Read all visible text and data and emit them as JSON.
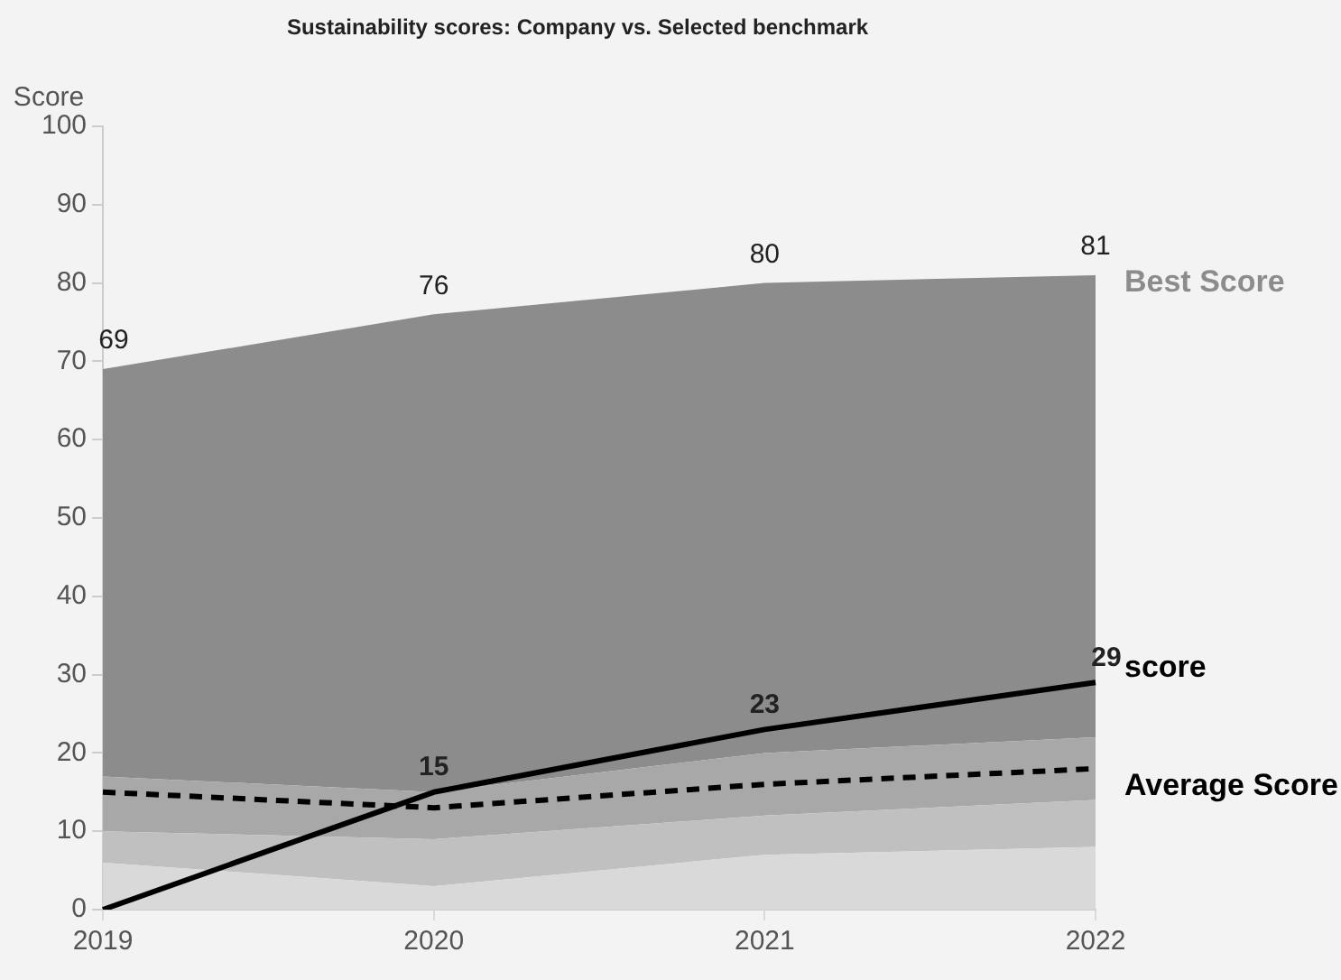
{
  "chart_data": {
    "type": "area",
    "title": "Sustainability scores: Company vs. Selected benchmark",
    "ylabel": "Score",
    "categories": [
      "2019",
      "2020",
      "2021",
      "2022"
    ],
    "stacked": true,
    "ylim": [
      0,
      100
    ],
    "yticks": [
      0,
      10,
      20,
      30,
      40,
      50,
      60,
      70,
      80,
      90,
      100
    ],
    "legend": false,
    "marker": "none",
    "totals": [
      "69",
      "76",
      "80",
      "81"
    ],
    "series": [
      {
        "color": "#d9d9d9",
        "values": [
          6,
          3,
          7,
          8
        ]
      },
      {
        "color": "#c0c0c0",
        "values": [
          4,
          6,
          5,
          6
        ]
      },
      {
        "color": "#a8a8a8",
        "values": [
          7,
          6,
          8,
          8
        ]
      },
      {
        "name": "Best Score",
        "color": "#8c8c8c",
        "values": [
          52,
          61,
          60,
          59
        ]
      },
      {
        "name": "Average Score",
        "type": "line",
        "line_style": "dashed",
        "color": "#000000",
        "values": [
          15,
          13,
          16,
          18
        ]
      },
      {
        "name": "score",
        "type": "line",
        "line_style": "solid",
        "color": "#000000",
        "values": [
          0,
          15,
          23,
          29
        ],
        "value_labels": [
          null,
          "15",
          "23",
          "29"
        ]
      }
    ]
  }
}
